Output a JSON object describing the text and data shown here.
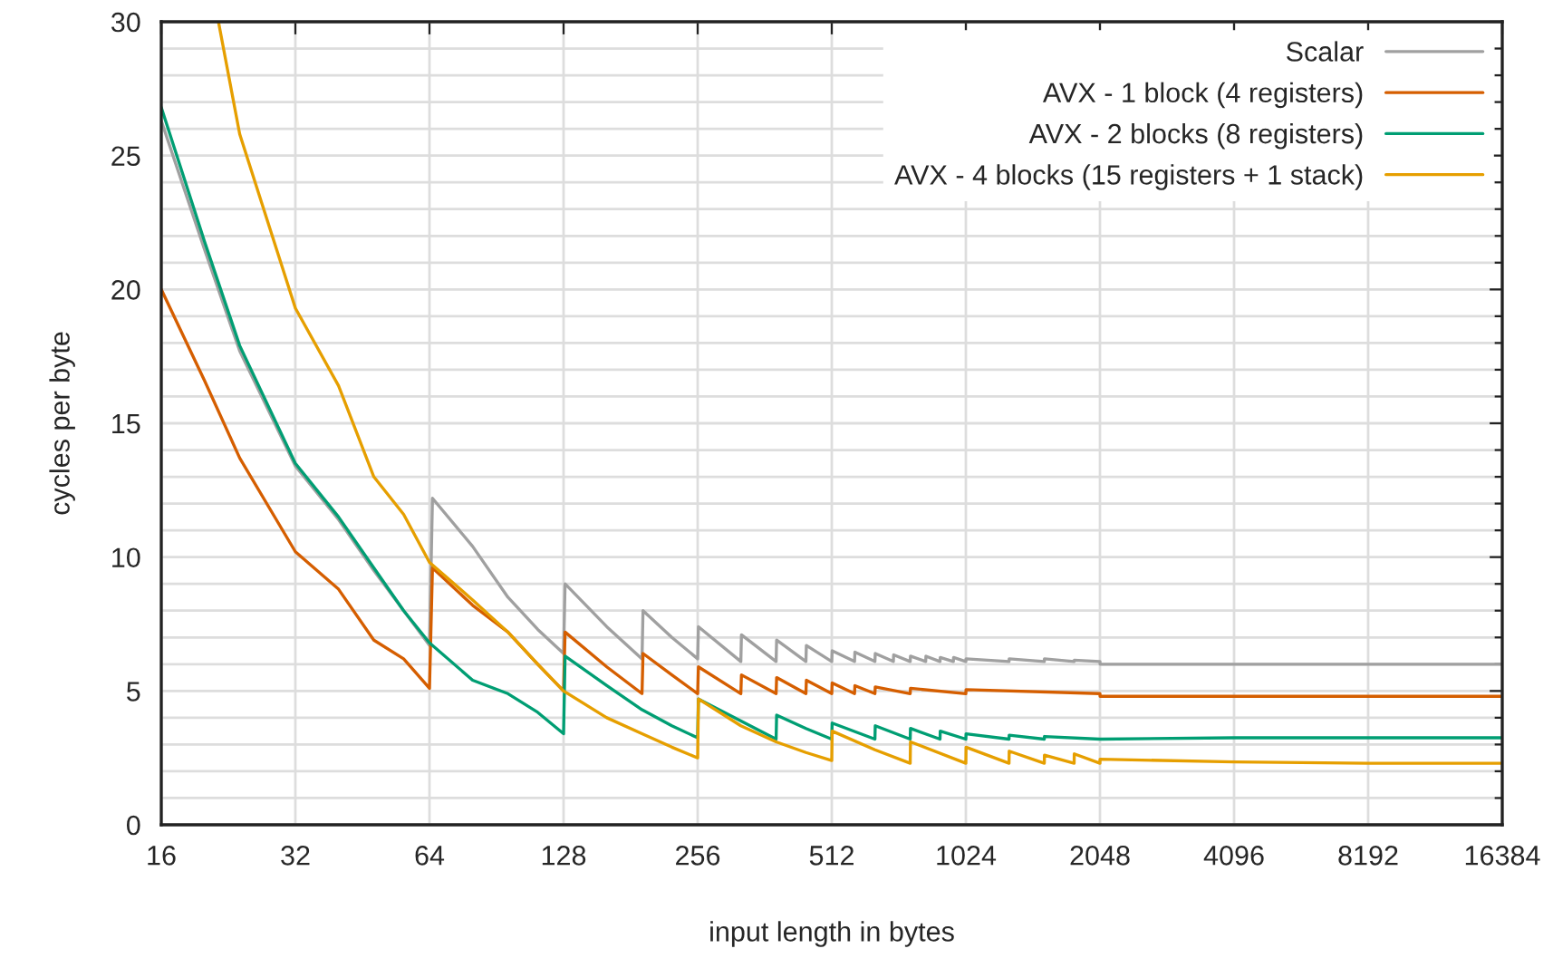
{
  "chart_data": {
    "type": "line",
    "xlabel": "input length in bytes",
    "ylabel": "cycles per byte",
    "log": "x",
    "xlim": [
      16,
      16384
    ],
    "ylim": [
      0,
      30
    ],
    "xticks": [
      16,
      32,
      64,
      128,
      256,
      512,
      1024,
      2048,
      4096,
      8192,
      16384
    ],
    "yticks": [
      0,
      {
        "value": 1,
        "label": null
      },
      {
        "value": 2,
        "label": null
      },
      {
        "value": 3,
        "label": null
      },
      {
        "value": 4,
        "label": null
      },
      5,
      {
        "value": 6,
        "label": null
      },
      {
        "value": 7,
        "label": null
      },
      {
        "value": 8,
        "label": null
      },
      {
        "value": 9,
        "label": null
      },
      10,
      {
        "value": 11,
        "label": null
      },
      {
        "value": 12,
        "label": null
      },
      {
        "value": 13,
        "label": null
      },
      {
        "value": 14,
        "label": null
      },
      15,
      {
        "value": 16,
        "label": null
      },
      {
        "value": 17,
        "label": null
      },
      {
        "value": 18,
        "label": null
      },
      {
        "value": 19,
        "label": null
      },
      20,
      {
        "value": 21,
        "label": null
      },
      {
        "value": 22,
        "label": null
      },
      {
        "value": 23,
        "label": null
      },
      {
        "value": 24,
        "label": null
      },
      25,
      {
        "value": 26,
        "label": null
      },
      {
        "value": 27,
        "label": null
      },
      {
        "value": 28,
        "label": null
      },
      {
        "value": 29,
        "label": null
      },
      30
    ],
    "grid": true,
    "legend": "top right",
    "marker": "none",
    "line_style": "solid",
    "series": [
      {
        "name": "Scalar",
        "color": "#a0a0a0",
        "x": [
          16,
          20,
          24,
          32,
          40,
          48,
          56,
          64,
          65,
          80,
          96,
          112,
          128,
          129,
          160,
          192,
          193,
          224,
          256,
          257,
          320,
          321,
          384,
          385,
          448,
          449,
          512,
          513,
          576,
          577,
          640,
          641,
          704,
          705,
          768,
          769,
          832,
          833,
          896,
          897,
          960,
          961,
          1024,
          1025,
          1280,
          1281,
          1536,
          1537,
          1792,
          1793,
          2048,
          2049,
          16384
        ],
        "values": [
          26.3,
          21.5,
          17.7,
          13.4,
          11.4,
          9.5,
          8.0,
          6.7,
          12.2,
          10.4,
          8.5,
          7.3,
          6.4,
          9.0,
          7.4,
          6.2,
          8.0,
          7.0,
          6.2,
          7.4,
          6.1,
          7.1,
          6.1,
          6.9,
          6.1,
          6.7,
          6.1,
          6.5,
          6.1,
          6.45,
          6.1,
          6.4,
          6.1,
          6.35,
          6.1,
          6.3,
          6.1,
          6.3,
          6.1,
          6.25,
          6.1,
          6.25,
          6.1,
          6.2,
          6.1,
          6.2,
          6.1,
          6.2,
          6.1,
          6.15,
          6.1,
          6.0,
          6.0
        ]
      },
      {
        "name": "AVX - 1 block (4 registers)",
        "color": "#d55e00",
        "x": [
          16,
          20,
          24,
          32,
          40,
          48,
          56,
          64,
          65,
          80,
          96,
          112,
          128,
          129,
          160,
          192,
          193,
          224,
          256,
          257,
          320,
          321,
          384,
          385,
          448,
          449,
          512,
          513,
          576,
          577,
          640,
          641,
          768,
          769,
          1024,
          1025,
          2048,
          2049,
          16384
        ],
        "values": [
          20.0,
          16.6,
          13.7,
          10.2,
          8.8,
          6.9,
          6.2,
          5.1,
          9.6,
          8.2,
          7.2,
          6.0,
          5.0,
          7.2,
          5.9,
          4.9,
          6.4,
          5.6,
          4.9,
          5.9,
          4.9,
          5.6,
          4.9,
          5.5,
          4.9,
          5.4,
          4.9,
          5.3,
          4.9,
          5.2,
          4.9,
          5.15,
          4.9,
          5.1,
          4.9,
          5.05,
          4.9,
          4.8,
          4.8
        ]
      },
      {
        "name": "AVX - 2 blocks (8 registers)",
        "color": "#009e73",
        "x": [
          16,
          20,
          24,
          32,
          40,
          48,
          56,
          64,
          80,
          96,
          112,
          128,
          129,
          160,
          192,
          224,
          256,
          257,
          384,
          385,
          448,
          512,
          513,
          640,
          641,
          768,
          769,
          896,
          897,
          1024,
          1025,
          1280,
          1281,
          1536,
          1537,
          2048,
          4096,
          16384
        ],
        "values": [
          26.8,
          21.8,
          17.9,
          13.5,
          11.5,
          9.6,
          8.0,
          6.8,
          5.4,
          4.9,
          4.2,
          3.4,
          6.3,
          5.2,
          4.3,
          3.7,
          3.25,
          4.7,
          3.2,
          4.1,
          3.6,
          3.2,
          3.8,
          3.2,
          3.7,
          3.2,
          3.6,
          3.2,
          3.5,
          3.2,
          3.4,
          3.2,
          3.35,
          3.2,
          3.3,
          3.2,
          3.25,
          3.25
        ]
      },
      {
        "name": "AVX - 4 blocks (15 registers + 1 stack)",
        "color": "#e69f00",
        "x": [
          21.5,
          24,
          32,
          40,
          48,
          56,
          64,
          80,
          96,
          112,
          128,
          160,
          192,
          224,
          256,
          257,
          320,
          384,
          448,
          512,
          513,
          640,
          768,
          769,
          1024,
          1025,
          1280,
          1281,
          1536,
          1537,
          1792,
          1793,
          2048,
          2049,
          4096,
          8192,
          16384
        ],
        "values": [
          30.0,
          25.8,
          19.3,
          16.4,
          13.0,
          11.6,
          9.8,
          8.4,
          7.2,
          6.0,
          5.0,
          4.0,
          3.4,
          2.9,
          2.5,
          4.7,
          3.7,
          3.1,
          2.7,
          2.4,
          3.5,
          2.8,
          2.3,
          3.1,
          2.3,
          2.9,
          2.3,
          2.75,
          2.3,
          2.6,
          2.3,
          2.65,
          2.3,
          2.45,
          2.35,
          2.3,
          2.3
        ]
      }
    ]
  }
}
